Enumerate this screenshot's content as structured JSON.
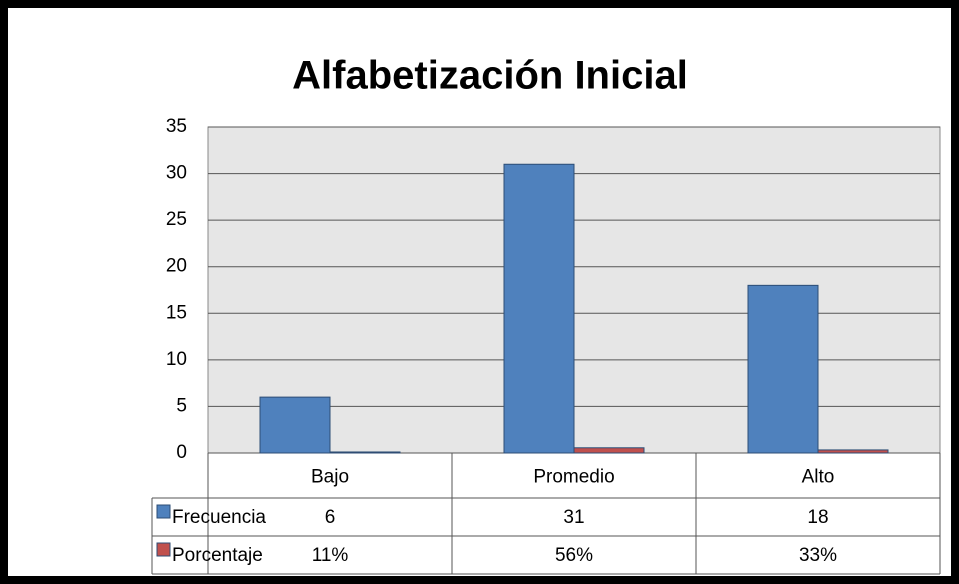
{
  "chart_data": {
    "type": "bar",
    "title": "Alfabetización Inicial",
    "categories": [
      "Bajo",
      "Promedio",
      "Alto"
    ],
    "series": [
      {
        "name": "Frecuencia",
        "color": "#4f81bd",
        "values": [
          6,
          31,
          18
        ]
      },
      {
        "name": "Porcentaje",
        "color": "#c0504d",
        "values": [
          0.11,
          0.56,
          0.33
        ],
        "value_labels": [
          "11%",
          "56%",
          "33%"
        ]
      }
    ],
    "ylim": [
      0,
      35
    ],
    "yticks": [
      0,
      5,
      10,
      15,
      20,
      25,
      30,
      35
    ],
    "grid": true,
    "data_table": true
  }
}
